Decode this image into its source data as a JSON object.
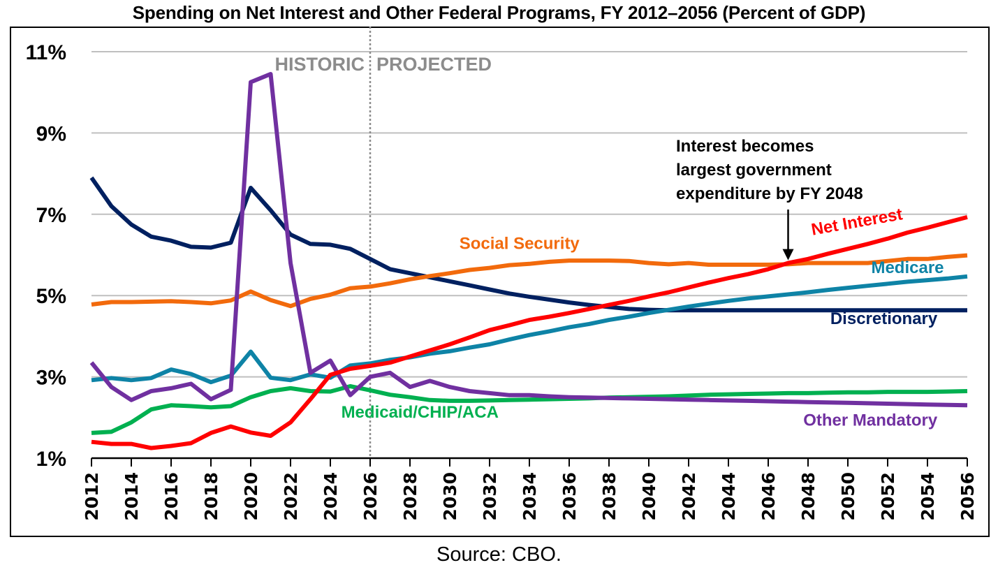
{
  "chart_data": {
    "type": "line",
    "title": "Spending on Net Interest and Other Federal Programs, FY 2012–2056 (Percent of GDP)",
    "xlabel": "",
    "ylabel": "",
    "ylim": [
      1,
      11
    ],
    "xlim": [
      2012,
      2056
    ],
    "grid": true,
    "yticks": [
      1,
      3,
      5,
      7,
      9,
      11
    ],
    "ytick_labels": [
      "1%",
      "3%",
      "5%",
      "7%",
      "9%",
      "11%"
    ],
    "xtick_labels": [
      "2012",
      "2014",
      "2016",
      "2018",
      "2020",
      "2022",
      "2024",
      "2026",
      "2028",
      "2030",
      "2032",
      "2034",
      "2036",
      "2038",
      "2040",
      "2042",
      "2044",
      "2046",
      "2048",
      "2050",
      "2052",
      "2054",
      "2056"
    ],
    "x": [
      2012,
      2013,
      2014,
      2015,
      2016,
      2017,
      2018,
      2019,
      2020,
      2021,
      2022,
      2023,
      2024,
      2025,
      2026,
      2027,
      2028,
      2029,
      2030,
      2031,
      2032,
      2033,
      2034,
      2035,
      2036,
      2037,
      2038,
      2039,
      2040,
      2041,
      2042,
      2043,
      2044,
      2045,
      2046,
      2047,
      2048,
      2049,
      2050,
      2051,
      2052,
      2053,
      2054,
      2055,
      2056
    ],
    "divider": {
      "x": 2026,
      "left_label": "HISTORIC",
      "right_label": "PROJECTED"
    },
    "series": [
      {
        "name": "Discretionary",
        "color": "#002060",
        "values": [
          7.9,
          7.2,
          6.75,
          6.45,
          6.35,
          6.2,
          6.18,
          6.3,
          7.65,
          7.1,
          6.5,
          6.27,
          6.25,
          6.15,
          5.9,
          5.65,
          5.55,
          5.45,
          5.35,
          5.25,
          5.15,
          5.05,
          4.97,
          4.9,
          4.83,
          4.77,
          4.72,
          4.67,
          4.65,
          4.64,
          4.64,
          4.64,
          4.64,
          4.64,
          4.64,
          4.64,
          4.64,
          4.64,
          4.64,
          4.64,
          4.64,
          4.64,
          4.64,
          4.64,
          4.64
        ]
      },
      {
        "name": "Social Security",
        "color": "#F26A0C",
        "values": [
          4.78,
          4.84,
          4.84,
          4.85,
          4.86,
          4.84,
          4.81,
          4.88,
          5.1,
          4.89,
          4.74,
          4.92,
          5.02,
          5.18,
          5.22,
          5.3,
          5.4,
          5.48,
          5.55,
          5.63,
          5.68,
          5.75,
          5.78,
          5.83,
          5.86,
          5.86,
          5.86,
          5.85,
          5.8,
          5.77,
          5.8,
          5.76,
          5.76,
          5.76,
          5.76,
          5.77,
          5.8,
          5.8,
          5.8,
          5.8,
          5.85,
          5.9,
          5.9,
          5.95,
          5.99
        ]
      },
      {
        "name": "Medicare",
        "color": "#0E83A6",
        "values": [
          2.92,
          2.97,
          2.92,
          2.97,
          3.18,
          3.07,
          2.87,
          3.03,
          3.62,
          2.98,
          2.92,
          3.06,
          2.98,
          3.28,
          3.33,
          3.42,
          3.48,
          3.57,
          3.63,
          3.72,
          3.8,
          3.92,
          4.03,
          4.12,
          4.22,
          4.3,
          4.4,
          4.48,
          4.57,
          4.65,
          4.73,
          4.8,
          4.87,
          4.93,
          4.98,
          5.03,
          5.08,
          5.14,
          5.19,
          5.24,
          5.29,
          5.34,
          5.38,
          5.42,
          5.47
        ]
      },
      {
        "name": "Medicaid/CHIP/ACA",
        "color": "#00B050",
        "values": [
          1.62,
          1.65,
          1.88,
          2.2,
          2.3,
          2.28,
          2.25,
          2.28,
          2.5,
          2.65,
          2.72,
          2.65,
          2.64,
          2.77,
          2.67,
          2.56,
          2.5,
          2.43,
          2.41,
          2.41,
          2.42,
          2.43,
          2.44,
          2.45,
          2.46,
          2.47,
          2.49,
          2.5,
          2.51,
          2.52,
          2.54,
          2.56,
          2.57,
          2.58,
          2.59,
          2.6,
          2.6,
          2.61,
          2.62,
          2.62,
          2.63,
          2.63,
          2.63,
          2.64,
          2.65
        ]
      },
      {
        "name": "Other Mandatory",
        "color": "#7030A0",
        "values": [
          3.35,
          2.75,
          2.43,
          2.65,
          2.72,
          2.83,
          2.45,
          2.68,
          10.25,
          10.45,
          5.8,
          3.1,
          3.4,
          2.55,
          3.0,
          3.1,
          2.75,
          2.9,
          2.75,
          2.65,
          2.6,
          2.55,
          2.55,
          2.52,
          2.5,
          2.49,
          2.48,
          2.47,
          2.46,
          2.45,
          2.44,
          2.43,
          2.42,
          2.41,
          2.4,
          2.39,
          2.38,
          2.37,
          2.36,
          2.35,
          2.34,
          2.33,
          2.32,
          2.31,
          2.3
        ]
      },
      {
        "name": "Net Interest",
        "color": "#FF0000",
        "values": [
          1.4,
          1.35,
          1.35,
          1.25,
          1.3,
          1.37,
          1.62,
          1.78,
          1.63,
          1.55,
          1.88,
          2.45,
          3.05,
          3.2,
          3.27,
          3.35,
          3.5,
          3.65,
          3.8,
          3.97,
          4.15,
          4.27,
          4.4,
          4.48,
          4.57,
          4.67,
          4.77,
          4.87,
          4.98,
          5.08,
          5.2,
          5.32,
          5.43,
          5.53,
          5.65,
          5.8,
          5.9,
          6.03,
          6.15,
          6.27,
          6.4,
          6.55,
          6.67,
          6.8,
          6.93
        ]
      }
    ],
    "series_labels": [
      {
        "series": "Discretionary",
        "text": "Discretionary",
        "x": 2054.5,
        "y": 4.3,
        "anchor": "end"
      },
      {
        "series": "Social Security",
        "text": "Social Security",
        "x": 2033.5,
        "y": 6.15,
        "anchor": "middle"
      },
      {
        "series": "Medicare",
        "text": "Medicare",
        "x": 2053,
        "y": 5.55,
        "anchor": "middle"
      },
      {
        "series": "Medicaid/CHIP/ACA",
        "text": "Medicaid/CHIP/ACA",
        "x": 2028.5,
        "y": 2.0,
        "anchor": "middle"
      },
      {
        "series": "Other Mandatory",
        "text": "Other Mandatory",
        "x": 2054.5,
        "y": 1.8,
        "anchor": "end"
      },
      {
        "series": "Net Interest",
        "text": "Net Interest",
        "x": 2050.5,
        "y": 6.68,
        "anchor": "middle",
        "rotate": -10
      }
    ],
    "annotations": [
      {
        "lines": [
          "Interest becomes",
          "largest government",
          "expenditure by FY 2048"
        ],
        "arrow_to": {
          "x": 2047,
          "y": 5.8
        }
      }
    ]
  },
  "source": "Source: CBO."
}
